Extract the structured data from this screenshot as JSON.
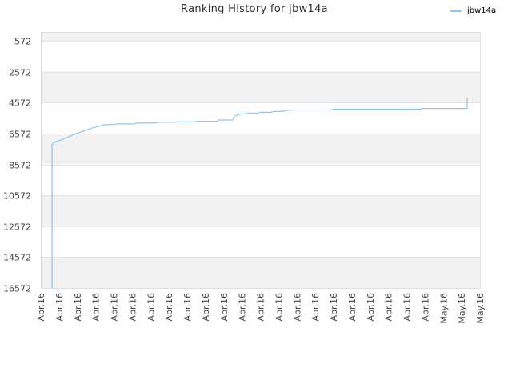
{
  "chart_data": {
    "type": "line",
    "title": "Ranking History for jbw14a",
    "xlabel": "",
    "ylabel": "",
    "y_inverted": true,
    "ylim": [
      572,
      16572
    ],
    "y_ticks": [
      "572",
      "2572",
      "4572",
      "6572",
      "8572",
      "10572",
      "12572",
      "14572",
      "16572"
    ],
    "x_ticks": [
      "Apr.16",
      "Apr.16",
      "Apr.16",
      "Apr.16",
      "Apr.16",
      "Apr.16",
      "Apr.16",
      "Apr.16",
      "Apr.16",
      "Apr.16",
      "Apr.16",
      "Apr.16",
      "Apr.16",
      "Apr.16",
      "Apr.16",
      "Apr.16",
      "Apr.16",
      "Apr.16",
      "Apr.16",
      "Apr.16",
      "Apr.16",
      "Apr.16",
      "May.16",
      "May.16",
      "May.16"
    ],
    "grid": true,
    "legend_position": "top-right",
    "series": [
      {
        "name": "jbw14a",
        "color": "#90c4ee",
        "x": [
          0.0,
          0.0,
          0.1,
          0.6,
          0.9,
          1.3,
          1.8,
          2.3,
          2.8,
          3.0,
          3.5,
          3.6,
          4.6,
          4.7,
          5.8,
          5.9,
          6.9,
          7.0,
          8.0,
          8.1,
          9.2,
          9.3,
          10.1,
          10.2,
          10.4,
          10.6,
          10.8,
          11.0,
          11.5,
          11.7,
          12.2,
          12.4,
          12.9,
          13.0,
          13.4,
          15.6,
          15.7,
          20.6,
          20.7,
          23.2,
          23.2
        ],
        "y": [
          16572,
          7300,
          7150,
          6950,
          6800,
          6600,
          6400,
          6200,
          6050,
          6000,
          6000,
          5950,
          5950,
          5900,
          5900,
          5850,
          5850,
          5820,
          5820,
          5780,
          5780,
          5700,
          5700,
          5450,
          5350,
          5300,
          5300,
          5250,
          5250,
          5200,
          5200,
          5150,
          5150,
          5100,
          5050,
          5050,
          5000,
          5000,
          4950,
          4950,
          4250
        ]
      }
    ]
  }
}
